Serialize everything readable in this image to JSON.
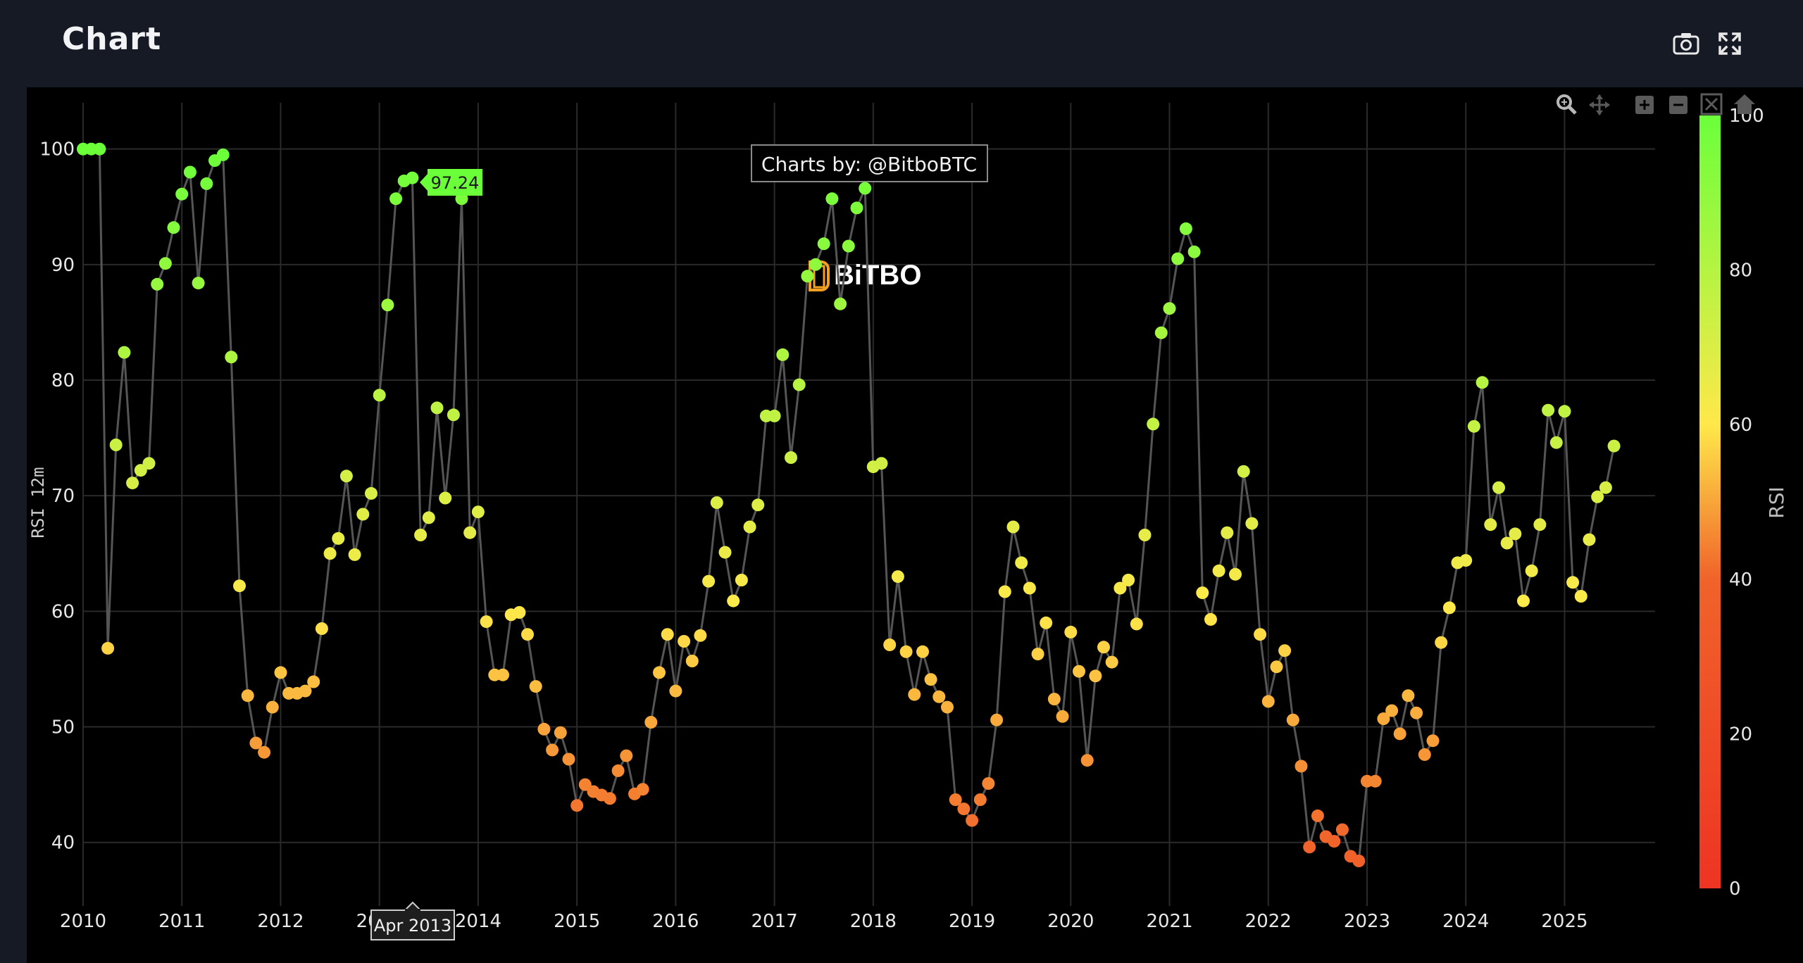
{
  "header": {
    "title": "Chart"
  },
  "icons": {
    "camera": "camera-icon",
    "expand": "expand-icon"
  },
  "modebar": [
    "zoom-icon",
    "pan-icon",
    "zoom-in-icon",
    "zoom-out-icon",
    "autoscale-icon",
    "reset-axes-icon"
  ],
  "credit": "Charts by: @BitboBTC",
  "watermark": "BiTBO",
  "hover": {
    "value_label": "97.24",
    "x_label": "Apr 2013"
  },
  "colors": {
    "background": "#000000",
    "line": "#555555",
    "grid": "#2a2a2a",
    "low": "#ee3423",
    "mid": "#ffe84a",
    "high": "#6bff3a"
  },
  "chart_data": {
    "type": "scatter",
    "mode": "lines+markers",
    "title": "",
    "xlabel": "",
    "ylabel": "RSI 12m",
    "xlim": [
      "2010-01",
      "2025-12"
    ],
    "ylim": [
      34.5,
      104
    ],
    "yticks": [
      40,
      50,
      60,
      70,
      80,
      90,
      100
    ],
    "xticks": [
      "2010",
      "2011",
      "2012",
      "2013",
      "2014",
      "2015",
      "2016",
      "2017",
      "2018",
      "2019",
      "2020",
      "2021",
      "2022",
      "2023",
      "2024",
      "2025"
    ],
    "colorbar": {
      "title": "RSI",
      "range": [
        0,
        100
      ],
      "ticks": [
        0,
        20,
        40,
        60,
        80,
        100
      ]
    },
    "grid": true,
    "series": [
      {
        "start": "2010-01",
        "frequency": "monthly",
        "values": [
          100,
          100,
          100,
          56.8,
          74.4,
          82.4,
          71.1,
          72.2,
          72.8,
          88.3,
          90.1,
          93.2,
          96.1,
          98,
          88.4,
          97,
          99,
          99.5,
          82,
          62.2,
          52.7,
          48.6,
          47.8,
          51.7,
          54.7,
          52.9,
          52.9,
          53.1,
          53.9,
          58.5,
          65,
          66.3,
          71.7,
          64.9,
          68.4,
          70.2,
          78.7,
          86.5,
          95.7,
          97.24,
          97.5,
          66.6,
          68.1,
          77.6,
          69.8,
          77,
          95.7,
          66.8,
          68.6,
          59.1,
          54.5,
          54.5,
          59.7,
          59.9,
          58,
          53.5,
          49.8,
          48,
          49.5,
          47.2,
          43.2,
          45,
          44.4,
          44.1,
          43.8,
          46.2,
          47.5,
          44.2,
          44.6,
          50.4,
          54.7,
          58,
          53.1,
          57.4,
          55.7,
          57.9,
          62.6,
          69.4,
          65.1,
          60.9,
          62.7,
          67.3,
          69.2,
          76.9,
          76.9,
          82.2,
          73.3,
          79.6,
          89,
          90,
          91.8,
          95.7,
          86.6,
          91.6,
          94.9,
          96.6,
          72.5,
          72.8,
          57.1,
          63,
          56.5,
          52.8,
          56.5,
          54.1,
          52.6,
          51.7,
          43.7,
          42.9,
          41.9,
          43.7,
          45.1,
          50.6,
          61.7,
          67.3,
          64.2,
          62,
          56.3,
          59,
          52.4,
          50.9,
          58.2,
          54.8,
          47.1,
          54.4,
          56.9,
          55.6,
          62,
          62.7,
          58.9,
          66.6,
          76.2,
          84.1,
          86.2,
          90.5,
          93.1,
          91.1,
          61.6,
          59.3,
          63.5,
          66.8,
          63.2,
          72.1,
          67.6,
          58,
          52.2,
          55.2,
          56.6,
          50.6,
          46.6,
          39.6,
          42.3,
          40.5,
          40.1,
          41.1,
          38.8,
          38.4,
          45.3,
          45.3,
          50.7,
          51.4,
          49.4,
          52.7,
          51.2,
          47.6,
          48.8,
          57.3,
          60.3,
          64.2,
          64.4,
          76,
          79.8,
          67.5,
          70.7,
          65.9,
          66.7,
          60.9,
          63.5,
          67.5,
          77.4,
          74.6,
          77.3,
          62.5,
          61.3,
          66.2,
          69.9,
          70.7,
          74.3
        ]
      }
    ]
  }
}
